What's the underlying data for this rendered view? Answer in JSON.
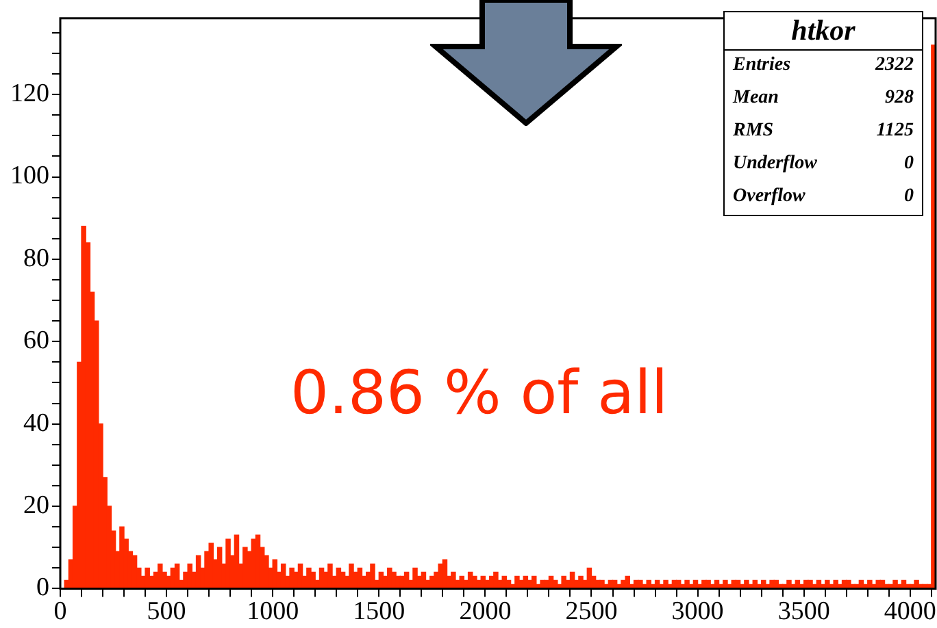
{
  "chart_data": {
    "type": "histogram",
    "title": "htkor",
    "bins": [
      0,
      20,
      40,
      60,
      80,
      100,
      120,
      140,
      160,
      180,
      200,
      220,
      240,
      260,
      280,
      300,
      320,
      340,
      360,
      380,
      400,
      420,
      440,
      460,
      480,
      500,
      520,
      540,
      560,
      580,
      600,
      620,
      640,
      660,
      680,
      700,
      720,
      740,
      760,
      780,
      800,
      820,
      840,
      860,
      880,
      900,
      920,
      940,
      960,
      980,
      1000,
      1020,
      1040,
      1060,
      1080,
      1100,
      1120,
      1140,
      1160,
      1180,
      1200,
      1220,
      1240,
      1260,
      1280,
      1300,
      1320,
      1340,
      1360,
      1380,
      1400,
      1420,
      1440,
      1460,
      1480,
      1500,
      1520,
      1540,
      1560,
      1580,
      1600,
      1620,
      1640,
      1660,
      1680,
      1700,
      1720,
      1740,
      1760,
      1780,
      1800,
      1820,
      1840,
      1860,
      1880,
      1900,
      1920,
      1940,
      1960,
      1980,
      2000,
      2020,
      2040,
      2060,
      2080,
      2100,
      2120,
      2140,
      2160,
      2180,
      2200,
      2220,
      2240,
      2260,
      2280,
      2300,
      2320,
      2340,
      2360,
      2380,
      2400,
      2420,
      2440,
      2460,
      2480,
      2500,
      2520,
      2540,
      2560,
      2580,
      2600,
      2620,
      2640,
      2660,
      2680,
      2700,
      2720,
      2740,
      2760,
      2780,
      2800,
      2820,
      2840,
      2860,
      2880,
      2900,
      2920,
      2940,
      2960,
      2980,
      3000,
      3020,
      3040,
      3060,
      3080,
      3100,
      3120,
      3140,
      3160,
      3180,
      3200,
      3220,
      3240,
      3260,
      3280,
      3300,
      3320,
      3340,
      3360,
      3380,
      3400,
      3420,
      3440,
      3460,
      3480,
      3500,
      3520,
      3540,
      3560,
      3580,
      3600,
      3620,
      3640,
      3660,
      3680,
      3700,
      3720,
      3740,
      3760,
      3780,
      3800,
      3820,
      3840,
      3860,
      3880,
      3900,
      3920,
      3940,
      3960,
      3980,
      4000,
      4020,
      4040,
      4060,
      4080,
      4100,
      4120
    ],
    "values": [
      0,
      2,
      7,
      20,
      55,
      88,
      84,
      72,
      65,
      40,
      27,
      20,
      14,
      9,
      15,
      12,
      9,
      8,
      5,
      3,
      5,
      3,
      4,
      6,
      4,
      3,
      5,
      6,
      2,
      4,
      6,
      4,
      8,
      5,
      9,
      11,
      7,
      10,
      6,
      12,
      8,
      13,
      6,
      10,
      9,
      12,
      13,
      10,
      8,
      5,
      7,
      4,
      6,
      3,
      5,
      4,
      6,
      3,
      5,
      4,
      2,
      5,
      4,
      6,
      3,
      5,
      4,
      3,
      6,
      4,
      5,
      3,
      4,
      6,
      2,
      4,
      3,
      5,
      4,
      3,
      3,
      4,
      2,
      5,
      3,
      4,
      2,
      3,
      4,
      6,
      7,
      3,
      4,
      2,
      3,
      2,
      4,
      3,
      2,
      3,
      2,
      3,
      4,
      2,
      3,
      2,
      1,
      3,
      2,
      3,
      2,
      3,
      1,
      2,
      2,
      3,
      2,
      1,
      3,
      2,
      4,
      2,
      3,
      2,
      5,
      3,
      2,
      2,
      1,
      2,
      2,
      1,
      2,
      3,
      1,
      2,
      2,
      1,
      2,
      1,
      2,
      1,
      2,
      1,
      2,
      2,
      1,
      2,
      1,
      2,
      1,
      2,
      2,
      1,
      2,
      1,
      2,
      1,
      2,
      2,
      1,
      2,
      1,
      2,
      1,
      2,
      1,
      2,
      2,
      1,
      1,
      2,
      1,
      2,
      1,
      2,
      2,
      1,
      2,
      1,
      2,
      1,
      2,
      1,
      2,
      2,
      1,
      1,
      2,
      1,
      2,
      1,
      2,
      2,
      1,
      1,
      2,
      1,
      2,
      1,
      1,
      2,
      1,
      1,
      1,
      132
    ],
    "color": "#ff2a00",
    "xlim": [
      0,
      4120
    ],
    "xticks": [
      0,
      {
        "value": 100,
        "label": null
      },
      {
        "value": 200,
        "label": null
      },
      {
        "value": 300,
        "label": null
      },
      {
        "value": 400,
        "label": null
      },
      500,
      {
        "value": 600,
        "label": null
      },
      {
        "value": 700,
        "label": null
      },
      {
        "value": 800,
        "label": null
      },
      {
        "value": 900,
        "label": null
      },
      1000,
      {
        "value": 1100,
        "label": null
      },
      {
        "value": 1200,
        "label": null
      },
      {
        "value": 1300,
        "label": null
      },
      {
        "value": 1400,
        "label": null
      },
      1500,
      {
        "value": 1600,
        "label": null
      },
      {
        "value": 1700,
        "label": null
      },
      {
        "value": 1800,
        "label": null
      },
      {
        "value": 1900,
        "label": null
      },
      2000,
      {
        "value": 2100,
        "label": null
      },
      {
        "value": 2200,
        "label": null
      },
      {
        "value": 2300,
        "label": null
      },
      {
        "value": 2400,
        "label": null
      },
      2500,
      {
        "value": 2600,
        "label": null
      },
      {
        "value": 2700,
        "label": null
      },
      {
        "value": 2800,
        "label": null
      },
      {
        "value": 2900,
        "label": null
      },
      3000,
      {
        "value": 3100,
        "label": null
      },
      {
        "value": 3200,
        "label": null
      },
      {
        "value": 3300,
        "label": null
      },
      {
        "value": 3400,
        "label": null
      },
      3500,
      {
        "value": 3600,
        "label": null
      },
      {
        "value": 3700,
        "label": null
      },
      {
        "value": 3800,
        "label": null
      },
      {
        "value": 3900,
        "label": null
      },
      4000,
      {
        "value": 4100,
        "label": null
      }
    ],
    "ylim": [
      0,
      138.5
    ],
    "yticks": [
      0,
      {
        "value": 5,
        "label": null
      },
      {
        "value": 10,
        "label": null
      },
      {
        "value": 15,
        "label": null
      },
      20,
      {
        "value": 25,
        "label": null
      },
      {
        "value": 30,
        "label": null
      },
      {
        "value": 35,
        "label": null
      },
      40,
      {
        "value": 45,
        "label": null
      },
      {
        "value": 50,
        "label": null
      },
      {
        "value": 55,
        "label": null
      },
      60,
      {
        "value": 65,
        "label": null
      },
      {
        "value": 70,
        "label": null
      },
      {
        "value": 75,
        "label": null
      },
      80,
      {
        "value": 85,
        "label": null
      },
      {
        "value": 90,
        "label": null
      },
      {
        "value": 95,
        "label": null
      },
      100,
      {
        "value": 105,
        "label": null
      },
      {
        "value": 110,
        "label": null
      },
      {
        "value": 115,
        "label": null
      },
      120,
      {
        "value": 125,
        "label": null
      },
      {
        "value": 130,
        "label": null
      },
      {
        "value": 135,
        "label": null
      }
    ],
    "annotations": [
      "0.86 % of all",
      "Entries",
      "2322",
      "Mean",
      "928",
      "RMS",
      "1125",
      "Underflow",
      "0",
      "Overflow",
      "0"
    ],
    "grid": false,
    "legend": false
  }
}
